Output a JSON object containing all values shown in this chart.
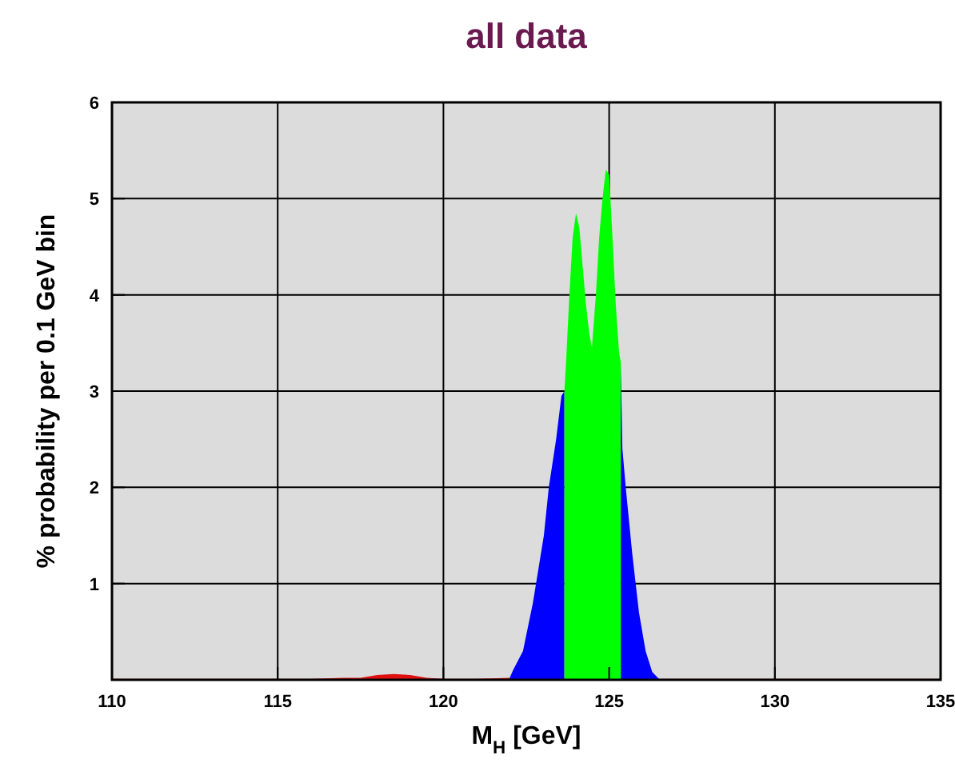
{
  "chart_data": {
    "type": "area",
    "title": "all data",
    "xlabel": "M$_{H}$ [GeV]",
    "ylabel": "% probability per 0.1 GeV bin",
    "xlim": [
      110,
      135
    ],
    "xticks": [
      110,
      115,
      120,
      125,
      130,
      135
    ],
    "ylim": [
      0,
      6
    ],
    "yticks": [
      1,
      2,
      3,
      4,
      5,
      6
    ],
    "grid": true,
    "series": [
      {
        "color": "#e01010",
        "x": [
          110,
          112,
          114,
          116,
          117,
          117.5,
          118,
          118.5,
          119,
          119.5,
          120,
          121,
          122,
          122.1,
          126.5,
          127,
          130,
          135
        ],
        "values": [
          0.01,
          0.01,
          0.01,
          0.01,
          0.02,
          0.02,
          0.05,
          0.06,
          0.05,
          0.02,
          0.01,
          0.01,
          0.02,
          null,
          0.01,
          0.01,
          0.01,
          0.01
        ]
      },
      {
        "color": "#0000ff",
        "x": [
          122.0,
          122.1,
          122.4,
          122.7,
          123.03,
          123.18,
          123.4,
          123.56,
          123.65,
          124.5,
          125.35,
          125.4,
          125.5,
          125.7,
          125.9,
          126.1,
          126.3,
          126.5
        ],
        "values": [
          0.02,
          0.1,
          0.3,
          0.8,
          1.5,
          2.0,
          2.5,
          2.95,
          3.0,
          null,
          3.3,
          2.4,
          2.0,
          1.3,
          0.7,
          0.3,
          0.08,
          0.01
        ]
      },
      {
        "color": "#00ff00",
        "x": [
          123.65,
          123.7,
          123.8,
          123.9,
          124.0,
          124.1,
          124.2,
          124.3,
          124.4,
          124.48,
          124.6,
          124.7,
          124.8,
          124.9,
          125.0,
          125.1,
          125.2,
          125.3,
          125.35
        ],
        "values": [
          3.0,
          3.3,
          4.0,
          4.6,
          4.85,
          4.7,
          4.3,
          3.9,
          3.6,
          3.45,
          4.0,
          4.6,
          5.0,
          5.3,
          5.25,
          4.6,
          3.9,
          3.4,
          3.3
        ]
      }
    ]
  }
}
